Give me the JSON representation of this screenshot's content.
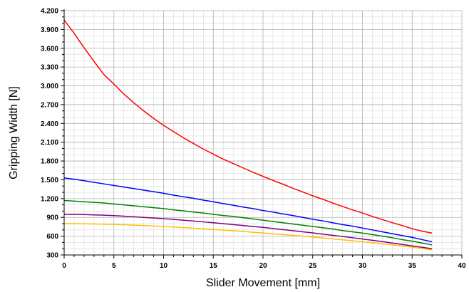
{
  "chart_data": {
    "type": "line",
    "title": "",
    "xlabel": "Slider Movement [mm]",
    "ylabel": "Gripping Width [N]",
    "xlim": [
      0,
      40
    ],
    "ylim": [
      300,
      4200
    ],
    "x_ticks": [
      0,
      5,
      10,
      15,
      20,
      25,
      30,
      35,
      40
    ],
    "x_tick_labels": [
      "0",
      "5",
      "10",
      "15",
      "20",
      "25",
      "30",
      "35",
      "40"
    ],
    "y_ticks": [
      300,
      600,
      900,
      1200,
      1500,
      1800,
      2100,
      2400,
      2700,
      3000,
      3300,
      3600,
      3900,
      4200
    ],
    "y_tick_labels": [
      "300",
      "600",
      "900",
      "1.200",
      "1.500",
      "1.800",
      "2.100",
      "2.400",
      "2.700",
      "3.000",
      "3.300",
      "3.600",
      "3.900",
      "4.200"
    ],
    "grid": true,
    "x": [
      0,
      1,
      2,
      3,
      4,
      5,
      6,
      7,
      8,
      9,
      10,
      11,
      12,
      13,
      14,
      15,
      16,
      17,
      18,
      19,
      20,
      21,
      22,
      23,
      24,
      25,
      26,
      27,
      28,
      29,
      30,
      31,
      32,
      33,
      34,
      35,
      36,
      37
    ],
    "series": [
      {
        "color": "#ff0000",
        "values": [
          4050,
          3840,
          3610,
          3390,
          3180,
          3030,
          2870,
          2730,
          2600,
          2480,
          2370,
          2270,
          2170,
          2080,
          1990,
          1910,
          1830,
          1760,
          1690,
          1620,
          1555,
          1490,
          1430,
          1365,
          1305,
          1245,
          1190,
          1130,
          1075,
          1020,
          970,
          915,
          865,
          815,
          770,
          720,
          680,
          650
        ]
      },
      {
        "color": "#0000ff",
        "values": [
          1530,
          1510,
          1485,
          1460,
          1435,
          1410,
          1385,
          1360,
          1335,
          1310,
          1285,
          1255,
          1230,
          1205,
          1175,
          1150,
          1120,
          1095,
          1065,
          1040,
          1010,
          985,
          955,
          930,
          900,
          870,
          845,
          815,
          785,
          760,
          730,
          700,
          670,
          640,
          610,
          580,
          545,
          510
        ]
      },
      {
        "color": "#008000",
        "values": [
          1170,
          1160,
          1150,
          1140,
          1130,
          1115,
          1100,
          1085,
          1070,
          1055,
          1040,
          1020,
          1005,
          985,
          970,
          950,
          930,
          915,
          895,
          875,
          855,
          835,
          815,
          795,
          775,
          755,
          735,
          715,
          690,
          670,
          650,
          625,
          600,
          575,
          545,
          520,
          490,
          460
        ]
      },
      {
        "color": "#800080",
        "values": [
          950,
          948,
          945,
          940,
          935,
          928,
          920,
          910,
          900,
          890,
          880,
          868,
          855,
          842,
          828,
          815,
          800,
          785,
          770,
          755,
          740,
          722,
          705,
          688,
          670,
          652,
          633,
          614,
          595,
          575,
          555,
          535,
          513,
          490,
          468,
          445,
          422,
          400
        ]
      },
      {
        "color": "#ffc000",
        "values": [
          800,
          800,
          798,
          795,
          792,
          788,
          782,
          776,
          770,
          762,
          755,
          746,
          737,
          728,
          718,
          708,
          697,
          686,
          675,
          663,
          651,
          639,
          626,
          613,
          600,
          586,
          572,
          557,
          542,
          527,
          511,
          495,
          478,
          461,
          443,
          425,
          405,
          380
        ]
      }
    ]
  }
}
